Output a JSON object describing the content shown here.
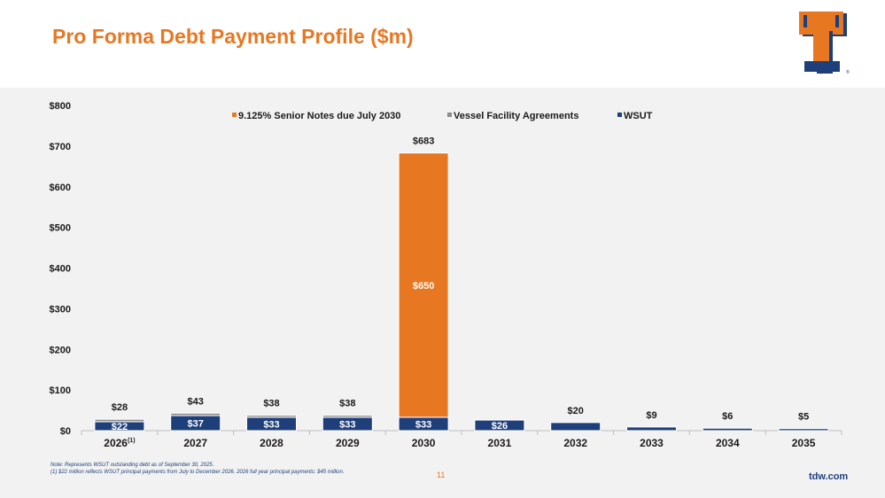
{
  "slide": {
    "title": "Pro Forma Debt Payment Profile ($m)",
    "page_number": "11",
    "website": "tdw.com",
    "note_line1": "Note: Represents WSUT outstanding debt as of September 30, 2025.",
    "note_line2": "(1) $22 million reflects WSUT principal payments from July to December 2026. 2026 full year principal payments: $45 million.",
    "logo_letter": "T"
  },
  "colors": {
    "orange": "#e87722",
    "navy": "#1f3f7a",
    "gray": "#8c8c8c",
    "panel": "#f2f2f2"
  },
  "chart_data": {
    "type": "bar",
    "stacked": true,
    "categories": [
      "2026",
      "2027",
      "2028",
      "2029",
      "2030",
      "2031",
      "2032",
      "2033",
      "2034",
      "2035"
    ],
    "category_footnotes": [
      "(1)",
      "",
      "",
      "",
      "",
      "",
      "",
      "",
      "",
      ""
    ],
    "series": [
      {
        "name": "WSUT",
        "color": "#1f3f7a",
        "values": [
          22,
          37,
          33,
          33,
          33,
          26,
          20,
          9,
          6,
          5
        ],
        "labels": [
          "$22",
          "$37",
          "$33",
          "$33",
          "$33",
          "$26",
          "",
          "",
          "",
          ""
        ]
      },
      {
        "name": "Vessel Facility Agreements",
        "color": "#8c8c8c",
        "values": [
          6,
          6,
          5,
          5,
          0,
          0,
          0,
          0,
          0,
          0
        ],
        "labels": [
          "",
          "",
          "",
          "",
          "",
          "",
          "",
          "",
          "",
          ""
        ]
      },
      {
        "name": "9.125% Senior Notes due July 2030",
        "color": "#e87722",
        "values": [
          0,
          0,
          0,
          0,
          650,
          0,
          0,
          0,
          0,
          0
        ],
        "labels": [
          "",
          "",
          "",
          "",
          "$650",
          "",
          "",
          "",
          "",
          ""
        ]
      }
    ],
    "totals": [
      28,
      43,
      38,
      38,
      683,
      26,
      20,
      9,
      6,
      5
    ],
    "total_labels": [
      "$28",
      "$43",
      "$38",
      "$38",
      "$683",
      "",
      "$20",
      "$9",
      "$6",
      "$5"
    ],
    "legend_order": [
      "9.125% Senior Notes due July 2030",
      "Vessel Facility Agreements",
      "WSUT"
    ],
    "legend_colors": [
      "#e87722",
      "#8c8c8c",
      "#1f3f7a"
    ],
    "legend_position": "top-center",
    "y_ticks": [
      0,
      100,
      200,
      300,
      400,
      500,
      600,
      700,
      800
    ],
    "y_tick_labels": [
      "$0",
      "$100",
      "$200",
      "$300",
      "$400",
      "$500",
      "$600",
      "$700",
      "$800"
    ],
    "ylim": [
      0,
      800
    ],
    "xlabel": "",
    "ylabel": "",
    "grid": false
  }
}
